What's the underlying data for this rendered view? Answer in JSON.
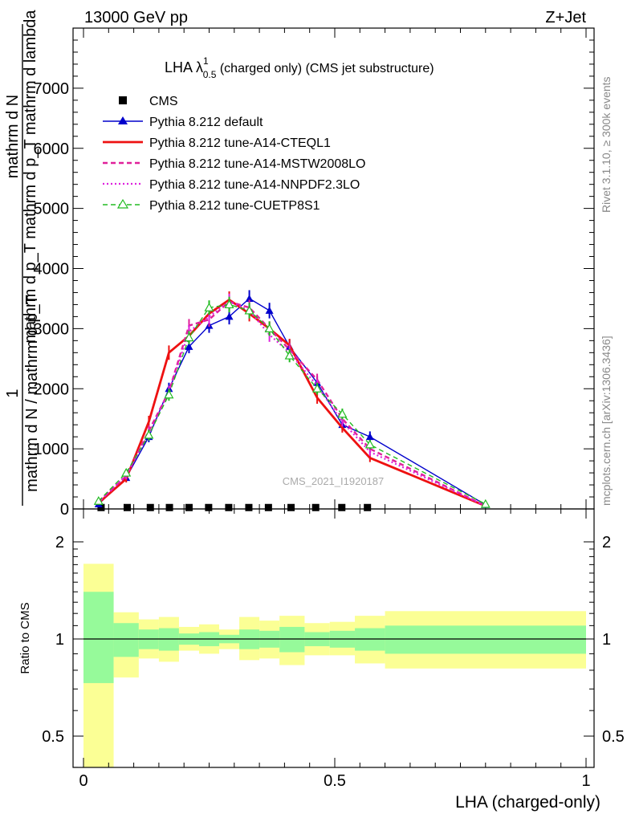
{
  "header": {
    "left": "13000 GeV pp",
    "right": "Z+Jet"
  },
  "side_labels": {
    "rivet": "Rivet 3.1.10, ≥ 300k events",
    "mcplots": "mcplots.cern.ch [arXiv:1306.3436]"
  },
  "watermark": "CMS_2021_I1920187",
  "colors": {
    "cms": "#000000",
    "default": "#0000cc",
    "cteql1": "#ee1111",
    "mstw": "#e0209a",
    "nnpdf": "#dd22dd",
    "cuetp8s1": "#22bb22",
    "band_outer": "#fbff95",
    "band_inner": "#96fa9a"
  },
  "chart_data": [
    {
      "type": "line",
      "title_parts": {
        "main": "LHA λ",
        "sup": "1",
        "sub": "0.5",
        "rest": " (charged only) (CMS jet substructure)"
      },
      "ylabel_lines": [
        "mathrm d N",
        "mathrm d p_T mathrm d p_T mathrm d lambda"
      ],
      "ylabel_frac": {
        "numerator": "1",
        "denominator": "mathrm d N / mathrm d p_T"
      },
      "xlim": [
        0,
        1
      ],
      "ylim": [
        0,
        8000
      ],
      "yticks": [
        0,
        1000,
        2000,
        3000,
        4000,
        5000,
        6000,
        7000
      ],
      "ytick_labels": [
        "0",
        "1000",
        "2000",
        "3000",
        "4000",
        "5000",
        "6000",
        "7000"
      ],
      "legend_position": "top-left",
      "series": [
        {
          "name": "CMS",
          "key": "cms",
          "style": "data",
          "x": [
            0.035,
            0.087,
            0.133,
            0.171,
            0.21,
            0.249,
            0.289,
            0.329,
            0.368,
            0.413,
            0.462,
            0.514,
            0.565
          ],
          "y": [
            10,
            10,
            10,
            10,
            10,
            10,
            10,
            10,
            10,
            10,
            10,
            10,
            10
          ]
        },
        {
          "name": "Pythia 8.212 default",
          "key": "default",
          "style": "solid",
          "marker": "triangle",
          "x": [
            0.03,
            0.085,
            0.13,
            0.17,
            0.21,
            0.25,
            0.29,
            0.33,
            0.37,
            0.41,
            0.465,
            0.515,
            0.57,
            0.8
          ],
          "y": [
            80,
            520,
            1200,
            2000,
            2700,
            3050,
            3200,
            3500,
            3300,
            2700,
            2100,
            1400,
            1200,
            70
          ],
          "err": [
            30,
            60,
            90,
            100,
            110,
            120,
            130,
            140,
            130,
            120,
            110,
            90,
            90,
            20
          ]
        },
        {
          "name": "Pythia 8.212 tune-A14-CTEQL1",
          "key": "cteql1",
          "style": "solid-thick",
          "x": [
            0.03,
            0.085,
            0.13,
            0.17,
            0.21,
            0.25,
            0.29,
            0.33,
            0.37,
            0.41,
            0.465,
            0.515,
            0.57,
            0.8
          ],
          "y": [
            100,
            500,
            1450,
            2600,
            2880,
            3250,
            3480,
            3250,
            3000,
            2720,
            1850,
            1350,
            850,
            50
          ],
          "err": [
            30,
            60,
            100,
            120,
            120,
            130,
            140,
            130,
            120,
            110,
            100,
            80,
            70,
            20
          ]
        },
        {
          "name": "Pythia 8.212 tune-A14-MSTW2008LO",
          "key": "mstw",
          "style": "dashed",
          "x": [
            0.03,
            0.085,
            0.13,
            0.17,
            0.21,
            0.25,
            0.29,
            0.33,
            0.37,
            0.41,
            0.465,
            0.515,
            0.57,
            0.8
          ],
          "y": [
            110,
            550,
            1300,
            1950,
            3050,
            3150,
            3450,
            3350,
            3000,
            2650,
            2150,
            1500,
            1000,
            50
          ],
          "err": [
            30,
            60,
            90,
            100,
            110,
            120,
            130,
            130,
            120,
            110,
            100,
            80,
            70,
            20
          ]
        },
        {
          "name": "Pythia 8.212 tune-A14-NNPDF2.3LO",
          "key": "nnpdf",
          "style": "dotted",
          "x": [
            0.03,
            0.085,
            0.13,
            0.17,
            0.21,
            0.25,
            0.29,
            0.33,
            0.37,
            0.41,
            0.465,
            0.515,
            0.57,
            0.8
          ],
          "y": [
            120,
            560,
            1250,
            1950,
            2950,
            3200,
            3450,
            3300,
            2900,
            2600,
            2050,
            1450,
            950,
            50
          ],
          "err": [
            30,
            60,
            90,
            100,
            110,
            120,
            130,
            130,
            120,
            110,
            100,
            80,
            70,
            20
          ]
        },
        {
          "name": "Pythia 8.212 tune-CUETP8S1",
          "key": "cuetp8s1",
          "style": "dashed-thin",
          "marker": "open-triangle",
          "x": [
            0.03,
            0.085,
            0.13,
            0.17,
            0.21,
            0.25,
            0.29,
            0.33,
            0.37,
            0.41,
            0.465,
            0.515,
            0.57,
            0.8
          ],
          "y": [
            130,
            600,
            1230,
            1900,
            2850,
            3350,
            3400,
            3300,
            3000,
            2550,
            2000,
            1580,
            1070,
            80
          ],
          "err": [
            30,
            60,
            90,
            100,
            110,
            120,
            130,
            130,
            120,
            110,
            100,
            90,
            80,
            20
          ]
        }
      ]
    },
    {
      "type": "area",
      "ylabel": "Ratio to CMS",
      "xlabel": "LHA (charged-only)",
      "xlim": [
        0,
        1
      ],
      "ylim": [
        0.35,
        2.25
      ],
      "xticks": [
        0,
        0.5,
        1
      ],
      "xtick_labels": [
        "0",
        "0.5",
        "1"
      ],
      "yticks": [
        0.5,
        1,
        2
      ],
      "ytick_labels": [
        "0.5",
        "1",
        "2"
      ],
      "reference_line": 1,
      "bins": [
        {
          "lo": 0.0,
          "hi": 0.06,
          "outer": [
            0.3,
            1.71
          ],
          "inner": [
            0.73,
            1.4
          ]
        },
        {
          "lo": 0.06,
          "hi": 0.11,
          "outer": [
            0.76,
            1.21
          ],
          "inner": [
            0.88,
            1.12
          ]
        },
        {
          "lo": 0.11,
          "hi": 0.15,
          "outer": [
            0.87,
            1.15
          ],
          "inner": [
            0.93,
            1.07
          ]
        },
        {
          "lo": 0.15,
          "hi": 0.19,
          "outer": [
            0.85,
            1.17
          ],
          "inner": [
            0.92,
            1.08
          ]
        },
        {
          "lo": 0.19,
          "hi": 0.23,
          "outer": [
            0.92,
            1.09
          ],
          "inner": [
            0.96,
            1.04
          ]
        },
        {
          "lo": 0.23,
          "hi": 0.27,
          "outer": [
            0.9,
            1.11
          ],
          "inner": [
            0.95,
            1.05
          ]
        },
        {
          "lo": 0.27,
          "hi": 0.31,
          "outer": [
            0.93,
            1.07
          ],
          "inner": [
            0.97,
            1.03
          ]
        },
        {
          "lo": 0.31,
          "hi": 0.35,
          "outer": [
            0.86,
            1.17
          ],
          "inner": [
            0.93,
            1.07
          ]
        },
        {
          "lo": 0.35,
          "hi": 0.39,
          "outer": [
            0.87,
            1.14
          ],
          "inner": [
            0.94,
            1.06
          ]
        },
        {
          "lo": 0.39,
          "hi": 0.44,
          "outer": [
            0.83,
            1.18
          ],
          "inner": [
            0.91,
            1.09
          ]
        },
        {
          "lo": 0.44,
          "hi": 0.49,
          "outer": [
            0.89,
            1.12
          ],
          "inner": [
            0.95,
            1.05
          ]
        },
        {
          "lo": 0.49,
          "hi": 0.54,
          "outer": [
            0.89,
            1.13
          ],
          "inner": [
            0.94,
            1.06
          ]
        },
        {
          "lo": 0.54,
          "hi": 0.6,
          "outer": [
            0.84,
            1.18
          ],
          "inner": [
            0.92,
            1.08
          ]
        },
        {
          "lo": 0.6,
          "hi": 1.0,
          "outer": [
            0.81,
            1.22
          ],
          "inner": [
            0.9,
            1.1
          ]
        }
      ]
    }
  ]
}
